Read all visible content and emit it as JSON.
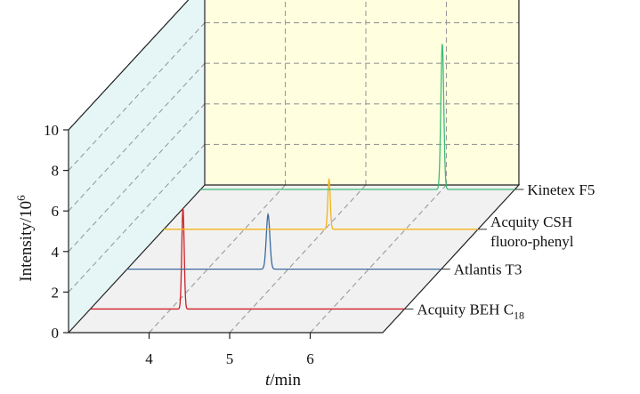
{
  "chart_data": {
    "type": "line",
    "title": "",
    "xlabel": {
      "symbol": "t",
      "unit": "/min"
    },
    "ylabel": {
      "base": "Intensity/10",
      "exponent": "6"
    },
    "x_ticks": [
      "4",
      "5",
      "6"
    ],
    "y_ticks": [
      "0",
      "2",
      "4",
      "6",
      "8",
      "10"
    ],
    "xlim": [
      3.0,
      6.9
    ],
    "ylim": [
      0,
      10
    ],
    "grid": true,
    "colors": {
      "back_wall": "#ffffe0",
      "side_wall": "#e6f6f6",
      "floor": "#f1f1f1",
      "grid": "#9a9a9a"
    },
    "series": [
      {
        "name": "Acquity BEH C",
        "subscript": "18",
        "color": "#cc2229",
        "peak_time": 4.15,
        "peak_height": 5.0,
        "peak_width": 0.015
      },
      {
        "name": "Atlantis T3",
        "color": "#3a6a9f",
        "peak_time": 4.75,
        "peak_height": 2.7,
        "peak_width": 0.022
      },
      {
        "name": "Acquity CSH",
        "name_line2": "fluoro-phenyl",
        "color": "#f2b417",
        "peak_time": 5.05,
        "peak_height": 2.5,
        "peak_width": 0.015
      },
      {
        "name": "Kinetex F5",
        "color": "#3dbb76",
        "peak_time": 6.0,
        "peak_height": 7.2,
        "peak_width": 0.018
      }
    ]
  }
}
